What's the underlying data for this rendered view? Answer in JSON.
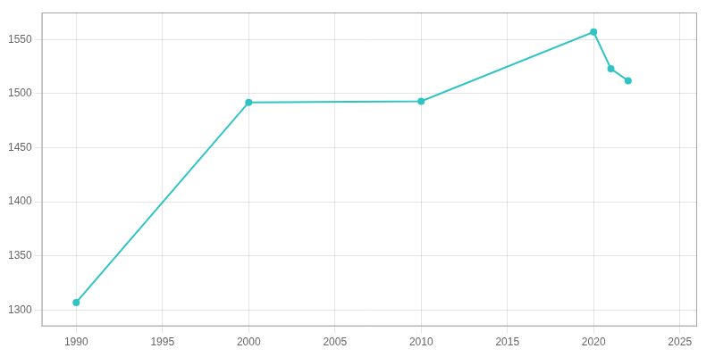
{
  "chart_data": {
    "type": "line",
    "x": [
      1990,
      2000,
      2010,
      2020,
      2021,
      2022
    ],
    "values": [
      1307,
      1492,
      1493,
      1557,
      1523,
      1512
    ],
    "color": "#2ec4c4",
    "marker": "circle",
    "xlim": [
      1988,
      2026
    ],
    "xticks": [
      1990,
      1995,
      2000,
      2005,
      2010,
      2015,
      2020,
      2025
    ],
    "ylim": [
      1285,
      1575
    ],
    "yticks": [
      1300,
      1350,
      1400,
      1450,
      1500,
      1550
    ],
    "grid": true
  }
}
